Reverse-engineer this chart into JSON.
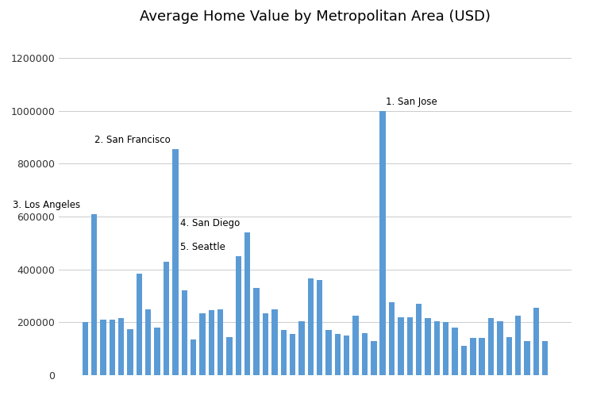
{
  "title": "Average Home Value by Metropolitan Area (USD)",
  "bar_color": "#5B9BD5",
  "background_color": "#ffffff",
  "ylim": [
    0,
    1300000
  ],
  "yticks": [
    0,
    200000,
    400000,
    600000,
    800000,
    1000000,
    1200000
  ],
  "ytick_labels": [
    "0",
    "200000",
    "400000",
    "600000",
    "800000",
    "1000000",
    "1200000"
  ],
  "values": [
    200000,
    610000,
    210000,
    210000,
    215000,
    175000,
    385000,
    250000,
    180000,
    430000,
    855000,
    320000,
    135000,
    235000,
    245000,
    250000,
    145000,
    450000,
    540000,
    330000,
    235000,
    250000,
    170000,
    155000,
    205000,
    365000,
    360000,
    170000,
    155000,
    150000,
    225000,
    160000,
    130000,
    1000000,
    275000,
    220000,
    220000,
    270000,
    215000,
    205000,
    200000,
    180000,
    110000,
    140000,
    140000,
    215000,
    205000,
    145000,
    225000,
    130000,
    255000,
    130000
  ],
  "annotations": [
    {
      "idx": 33,
      "label": "1. San Jose",
      "ha": "left",
      "va": "bottom"
    },
    {
      "idx": 10,
      "label": "2. San Francisco",
      "ha": "left",
      "va": "bottom"
    },
    {
      "idx": 1,
      "label": "3. Los Angeles",
      "ha": "left",
      "va": "bottom"
    },
    {
      "idx": 18,
      "label": "4. San Diego",
      "ha": "left",
      "va": "bottom"
    },
    {
      "idx": 17,
      "label": "5. Seattle",
      "ha": "left",
      "va": "bottom"
    }
  ],
  "title_fontsize": 13,
  "annotation_fontsize": 8.5,
  "ytick_fontsize": 9
}
